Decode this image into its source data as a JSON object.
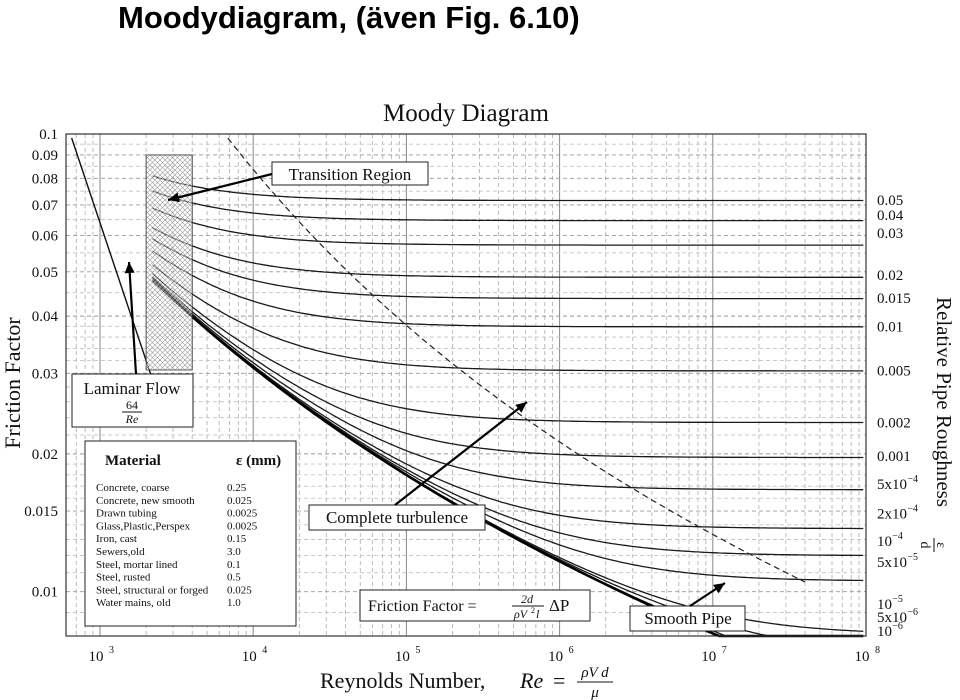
{
  "page_title": "Moodydiagram, (även Fig. 6.10)",
  "chart_data": {
    "type": "line",
    "title": "Moody Diagram",
    "xlabel": "Reynolds Number,",
    "xlabel_symbol": "Re",
    "xlabel_formula": {
      "lhs": "=",
      "numerator": "ρV d",
      "denominator": "μ"
    },
    "ylabel": "Friction Factor",
    "right_label": "Relative Pipe Roughness",
    "right_label_formula": {
      "numerator": "ε",
      "denominator": "d"
    },
    "x_scale": "log",
    "y_scale": "log",
    "xlim": [
      600,
      100000000
    ],
    "ylim": [
      0.008,
      0.1
    ],
    "grid": true,
    "x_ticks": [
      {
        "value": 1000,
        "base": "10",
        "exp": "3"
      },
      {
        "value": 10000,
        "base": "10",
        "exp": "4"
      },
      {
        "value": 100000,
        "base": "10",
        "exp": "5"
      },
      {
        "value": 1000000,
        "base": "10",
        "exp": "6"
      },
      {
        "value": 10000000,
        "base": "10",
        "exp": "7"
      },
      {
        "value": 100000000,
        "base": "10",
        "exp": "8"
      }
    ],
    "y_ticks": [
      {
        "value": 0.1,
        "label": "0.1"
      },
      {
        "value": 0.09,
        "label": "0.09"
      },
      {
        "value": 0.08,
        "label": "0.08"
      },
      {
        "value": 0.07,
        "label": "0.07"
      },
      {
        "value": 0.06,
        "label": "0.06"
      },
      {
        "value": 0.05,
        "label": "0.05"
      },
      {
        "value": 0.04,
        "label": "0.04"
      },
      {
        "value": 0.03,
        "label": "0.03"
      },
      {
        "value": 0.02,
        "label": "0.02"
      },
      {
        "value": 0.015,
        "label": "0.015"
      },
      {
        "value": 0.01,
        "label": "0.01"
      }
    ],
    "roughness_labels": [
      {
        "value": 0.05,
        "label": "0.05",
        "label_f": 0.0718
      },
      {
        "value": 0.04,
        "label": "0.04",
        "label_f": 0.0665
      },
      {
        "value": 0.03,
        "label": "0.03",
        "label_f": 0.0608
      },
      {
        "value": 0.02,
        "label": "0.02",
        "label_f": 0.0492
      },
      {
        "value": 0.015,
        "label": "0.015",
        "label_f": 0.0438
      },
      {
        "value": 0.01,
        "label": "0.01",
        "label_f": 0.038
      },
      {
        "value": 0.005,
        "label": "0.005",
        "label_f": 0.0304
      },
      {
        "value": 0.002,
        "label": "0.002",
        "label_f": 0.0234
      },
      {
        "value": 0.001,
        "label": "0.001",
        "label_f": 0.0198
      },
      {
        "value": 0.0005,
        "label": "5x10",
        "exp": "−4",
        "label_f": 0.0172
      },
      {
        "value": 0.0002,
        "label": "2x10",
        "exp": "−4",
        "label_f": 0.0148
      },
      {
        "value": 0.0001,
        "label": "10",
        "exp": "−4",
        "label_f": 0.0129
      },
      {
        "value": 5e-05,
        "label": "5x10",
        "exp": "−5",
        "label_f": 0.0116
      },
      {
        "value": 1e-05,
        "label": "10",
        "exp": "−5",
        "label_f": 0.0094
      },
      {
        "value": 5e-06,
        "label": "5x10",
        "exp": "−6",
        "label_f": 0.0088
      },
      {
        "value": 1e-06,
        "label": "10",
        "exp": "−6",
        "label_f": 0.0082
      }
    ],
    "series": [
      {
        "type": "laminar",
        "formula": "64/Re"
      },
      {
        "type": "smooth"
      },
      {
        "type": "complete_turbulence",
        "style": "dashed"
      }
    ],
    "transition_region": {
      "re_min": 2000,
      "re_max": 4000,
      "f_min": 0.0305,
      "f_max": 0.09
    },
    "annotations": {
      "transition": "Transition Region",
      "laminar_title": "Laminar Flow",
      "laminar_num": "64",
      "laminar_den": "Re",
      "complete": "Complete turbulence",
      "smooth": "Smooth Pipe",
      "friction_eq": {
        "label": "Friction Factor =",
        "num": "2d",
        "den_a": "ρV",
        "den_sup": "2",
        "den_b": "l",
        "delta": "ΔP"
      }
    },
    "materials": {
      "header_material": "Material",
      "header_eps": "ε (mm)",
      "rows": [
        {
          "name": "Concrete, coarse",
          "eps": "0.25"
        },
        {
          "name": "Concrete, new smooth",
          "eps": "0.025"
        },
        {
          "name": "Drawn tubing",
          "eps": "0.0025"
        },
        {
          "name": "Glass,Plastic,Perspex",
          "eps": "0.0025"
        },
        {
          "name": "Iron, cast",
          "eps": "0.15"
        },
        {
          "name": "Sewers,old",
          "eps": "3.0"
        },
        {
          "name": "Steel, mortar lined",
          "eps": "0.1"
        },
        {
          "name": "Steel, rusted",
          "eps": "0.5"
        },
        {
          "name": "Steel, structural or forged",
          "eps": "0.025"
        },
        {
          "name": "Water mains, old",
          "eps": "1.0"
        }
      ]
    }
  }
}
